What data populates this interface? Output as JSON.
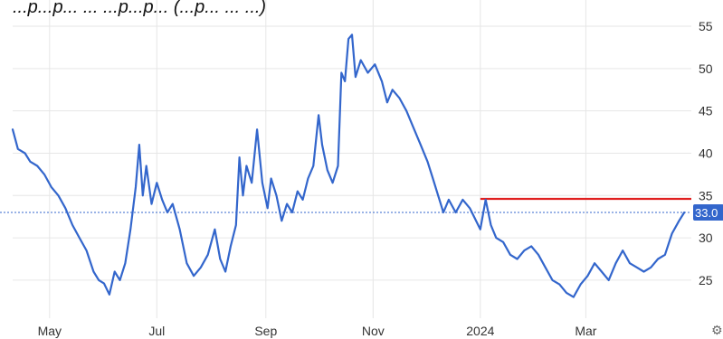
{
  "chart_data": {
    "type": "line",
    "title_partial": "...p...p... ... ...p...p... (...p... ... ...)",
    "x_axis": {
      "tick_labels": [
        "May",
        "Jul",
        "Sep",
        "Nov",
        "2024",
        "Mar"
      ],
      "tick_positions": [
        "2023-05-01",
        "2023-07-01",
        "2023-09-01",
        "2023-11-01",
        "2024-01-01",
        "2024-03-01"
      ],
      "range": [
        "2023-04-10",
        "2024-04-30"
      ]
    },
    "y_axis": {
      "position": "right",
      "tick_labels": [
        "25",
        "30",
        "35",
        "40",
        "45",
        "50",
        "55"
      ],
      "ticks": [
        25,
        30,
        35,
        40,
        45,
        50,
        55
      ],
      "range": [
        20.5,
        56.5
      ]
    },
    "grid": true,
    "last_value": 33.0,
    "last_value_label": "33.0",
    "reference_line": {
      "value": 34.6,
      "from": "2024-01-01",
      "to": "2024-04-30",
      "color": "#e02020"
    },
    "series": [
      {
        "color": "#3366cc",
        "points": [
          [
            "2023-04-10",
            42.8
          ],
          [
            "2023-04-13",
            40.5
          ],
          [
            "2023-04-17",
            40.0
          ],
          [
            "2023-04-20",
            39.0
          ],
          [
            "2023-04-24",
            38.5
          ],
          [
            "2023-04-28",
            37.5
          ],
          [
            "2023-05-02",
            36.0
          ],
          [
            "2023-05-06",
            35.0
          ],
          [
            "2023-05-10",
            33.5
          ],
          [
            "2023-05-14",
            31.5
          ],
          [
            "2023-05-18",
            30.0
          ],
          [
            "2023-05-22",
            28.5
          ],
          [
            "2023-05-26",
            26.0
          ],
          [
            "2023-05-29",
            25.0
          ],
          [
            "2023-06-01",
            24.6
          ],
          [
            "2023-06-04",
            23.3
          ],
          [
            "2023-06-07",
            26.0
          ],
          [
            "2023-06-10",
            25.0
          ],
          [
            "2023-06-13",
            27.0
          ],
          [
            "2023-06-16",
            31.0
          ],
          [
            "2023-06-19",
            36.0
          ],
          [
            "2023-06-21",
            41.0
          ],
          [
            "2023-06-23",
            35.0
          ],
          [
            "2023-06-25",
            38.5
          ],
          [
            "2023-06-28",
            34.0
          ],
          [
            "2023-07-01",
            36.5
          ],
          [
            "2023-07-04",
            34.5
          ],
          [
            "2023-07-07",
            33.0
          ],
          [
            "2023-07-10",
            34.0
          ],
          [
            "2023-07-14",
            31.0
          ],
          [
            "2023-07-18",
            27.0
          ],
          [
            "2023-07-22",
            25.5
          ],
          [
            "2023-07-26",
            26.5
          ],
          [
            "2023-07-30",
            28.0
          ],
          [
            "2023-08-03",
            31.0
          ],
          [
            "2023-08-06",
            27.5
          ],
          [
            "2023-08-09",
            26.0
          ],
          [
            "2023-08-12",
            29.0
          ],
          [
            "2023-08-15",
            31.5
          ],
          [
            "2023-08-17",
            39.5
          ],
          [
            "2023-08-19",
            35.0
          ],
          [
            "2023-08-21",
            38.5
          ],
          [
            "2023-08-24",
            36.5
          ],
          [
            "2023-08-27",
            42.8
          ],
          [
            "2023-08-30",
            36.5
          ],
          [
            "2023-09-02",
            33.5
          ],
          [
            "2023-09-04",
            37.0
          ],
          [
            "2023-09-07",
            35.0
          ],
          [
            "2023-09-10",
            32.0
          ],
          [
            "2023-09-13",
            34.0
          ],
          [
            "2023-09-16",
            33.0
          ],
          [
            "2023-09-19",
            35.5
          ],
          [
            "2023-09-22",
            34.5
          ],
          [
            "2023-09-25",
            37.0
          ],
          [
            "2023-09-28",
            38.5
          ],
          [
            "2023-10-01",
            44.5
          ],
          [
            "2023-10-03",
            41.0
          ],
          [
            "2023-10-06",
            38.0
          ],
          [
            "2023-10-09",
            36.5
          ],
          [
            "2023-10-12",
            38.5
          ],
          [
            "2023-10-14",
            49.5
          ],
          [
            "2023-10-16",
            48.5
          ],
          [
            "2023-10-18",
            53.5
          ],
          [
            "2023-10-20",
            54.0
          ],
          [
            "2023-10-22",
            49.0
          ],
          [
            "2023-10-25",
            51.0
          ],
          [
            "2023-10-29",
            49.5
          ],
          [
            "2023-11-02",
            50.5
          ],
          [
            "2023-11-06",
            48.5
          ],
          [
            "2023-11-09",
            46.0
          ],
          [
            "2023-11-12",
            47.5
          ],
          [
            "2023-11-16",
            46.5
          ],
          [
            "2023-11-20",
            45.0
          ],
          [
            "2023-11-24",
            43.0
          ],
          [
            "2023-11-28",
            41.0
          ],
          [
            "2023-12-02",
            39.0
          ],
          [
            "2023-12-05",
            37.0
          ],
          [
            "2023-12-08",
            35.0
          ],
          [
            "2023-12-11",
            33.0
          ],
          [
            "2023-12-14",
            34.5
          ],
          [
            "2023-12-18",
            33.0
          ],
          [
            "2023-12-22",
            34.5
          ],
          [
            "2023-12-26",
            33.5
          ],
          [
            "2024-01-01",
            31.0
          ],
          [
            "2024-01-04",
            34.5
          ],
          [
            "2024-01-07",
            31.5
          ],
          [
            "2024-01-10",
            30.0
          ],
          [
            "2024-01-14",
            29.5
          ],
          [
            "2024-01-18",
            28.0
          ],
          [
            "2024-01-22",
            27.5
          ],
          [
            "2024-01-26",
            28.5
          ],
          [
            "2024-01-30",
            29.0
          ],
          [
            "2024-02-03",
            28.0
          ],
          [
            "2024-02-07",
            26.5
          ],
          [
            "2024-02-11",
            25.0
          ],
          [
            "2024-02-15",
            24.5
          ],
          [
            "2024-02-19",
            23.5
          ],
          [
            "2024-02-23",
            23.0
          ],
          [
            "2024-02-27",
            24.5
          ],
          [
            "2024-03-02",
            25.5
          ],
          [
            "2024-03-06",
            27.0
          ],
          [
            "2024-03-10",
            26.0
          ],
          [
            "2024-03-14",
            25.0
          ],
          [
            "2024-03-18",
            27.0
          ],
          [
            "2024-03-22",
            28.5
          ],
          [
            "2024-03-26",
            27.0
          ],
          [
            "2024-03-30",
            26.5
          ],
          [
            "2024-04-03",
            26.0
          ],
          [
            "2024-04-07",
            26.5
          ],
          [
            "2024-04-11",
            27.5
          ],
          [
            "2024-04-15",
            28.0
          ],
          [
            "2024-04-19",
            30.5
          ],
          [
            "2024-04-23",
            32.0
          ],
          [
            "2024-04-26",
            33.0
          ]
        ]
      }
    ],
    "colors": {
      "line": "#3366cc",
      "reference": "#e02020",
      "last_badge": "#3366cc",
      "grid": "#e6e6e6"
    }
  }
}
